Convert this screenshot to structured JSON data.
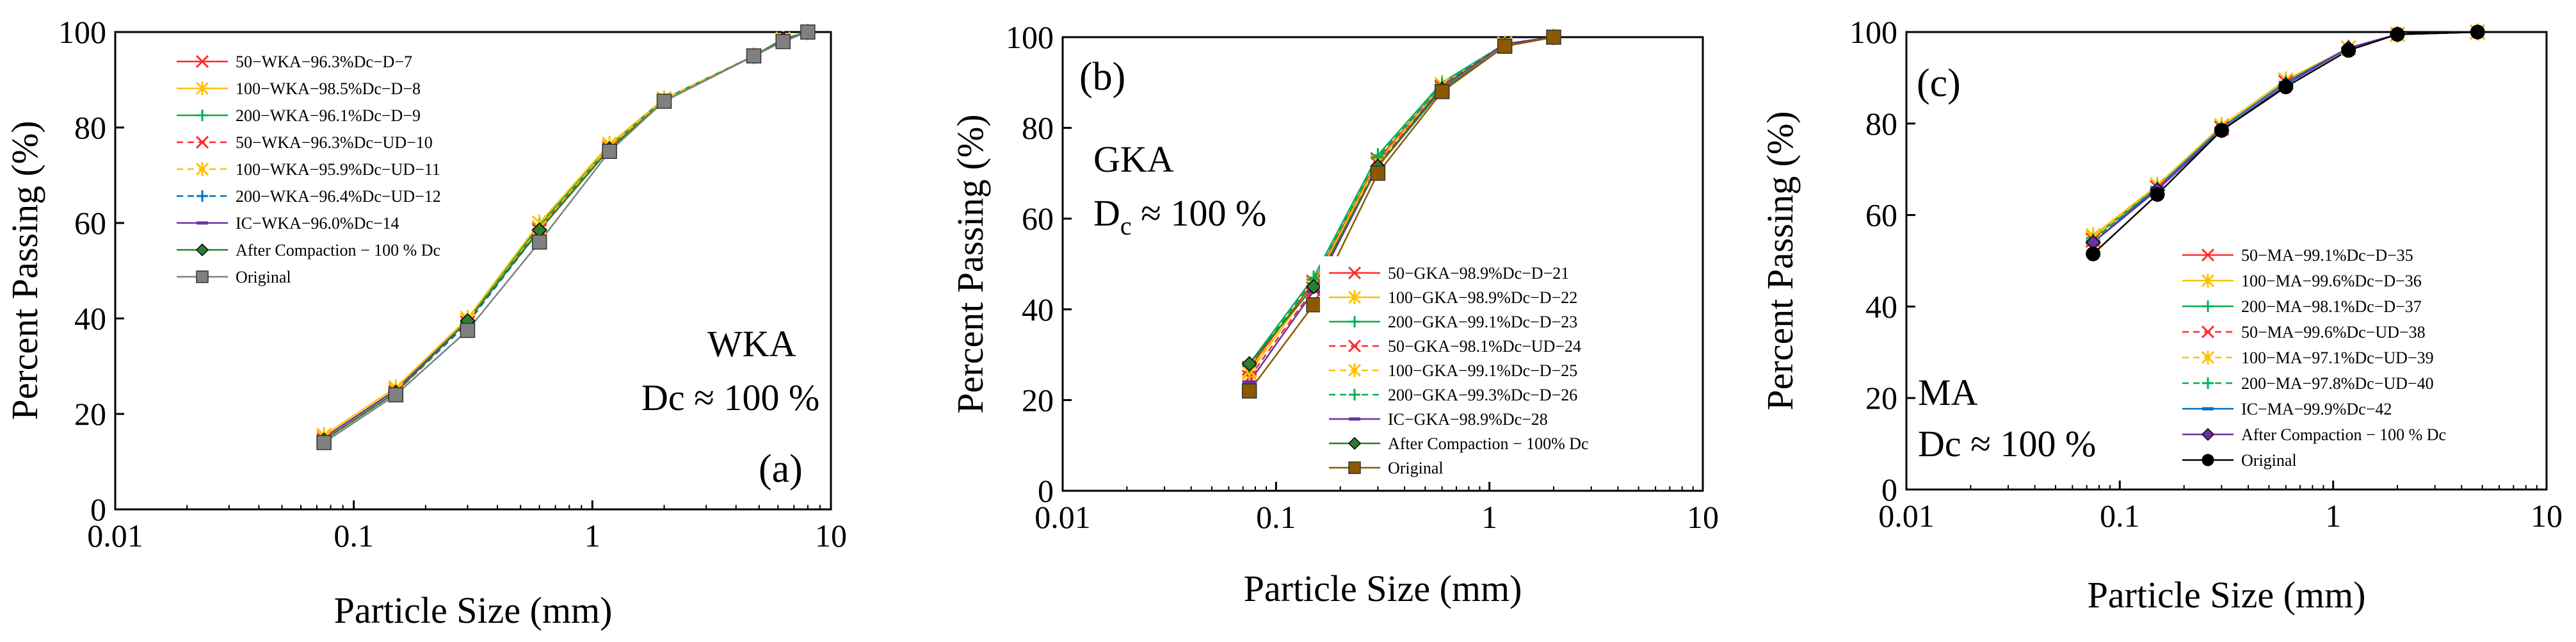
{
  "chart_data": [
    {
      "type": "line",
      "panel_label": "(a)",
      "material_label": "WKA",
      "dc_label": "Dc ≈ 100 %",
      "xlabel": "Particle Size (mm)",
      "ylabel": "Percent Passing (%)",
      "xscale": "log",
      "xlim": [
        0.01,
        10
      ],
      "ylim": [
        0,
        100
      ],
      "xticks": [
        0.01,
        0.1,
        1,
        10
      ],
      "xtick_labels": [
        "0.01",
        "0.1",
        "1",
        "10"
      ],
      "yticks": [
        0,
        20,
        40,
        60,
        80,
        100
      ],
      "ytick_labels": [
        "0",
        "20",
        "40",
        "60",
        "80",
        "100"
      ],
      "grid": false,
      "legend_position": "top-left",
      "series": [
        {
          "name": "50−WKA−96.3%Dc−D−7",
          "color": "#ff2a2a",
          "dash": "solid",
          "marker": "x",
          "x": [
            0.075,
            0.15,
            0.3,
            0.6,
            1.18,
            2.0,
            4.75,
            6.3,
            8.0
          ],
          "y": [
            15.0,
            25.0,
            39.5,
            59.0,
            76.0,
            86.0,
            95.0,
            98.5,
            100
          ]
        },
        {
          "name": "100−WKA−98.5%Dc−D−8",
          "color": "#ffc000",
          "dash": "solid",
          "marker": "asterisk",
          "x": [
            0.075,
            0.15,
            0.3,
            0.6,
            1.18,
            2.0,
            4.75,
            6.3,
            8.0
          ],
          "y": [
            15.5,
            25.5,
            40.0,
            60.0,
            76.5,
            86.0,
            95.0,
            98.5,
            100
          ]
        },
        {
          "name": "200−WKA−96.1%Dc−D−9",
          "color": "#00b050",
          "dash": "solid",
          "marker": "plus",
          "x": [
            0.075,
            0.15,
            0.3,
            0.6,
            1.18,
            2.0,
            4.75,
            6.3,
            8.0
          ],
          "y": [
            15.0,
            25.0,
            39.5,
            59.5,
            76.0,
            86.0,
            95.0,
            98.5,
            100
          ]
        },
        {
          "name": "50−WKA−96.3%Dc−UD−10",
          "color": "#ff2a2a",
          "dash": "dashed",
          "marker": "x",
          "x": [
            0.075,
            0.15,
            0.3,
            0.6,
            1.18,
            2.0,
            4.75,
            6.3,
            8.0
          ],
          "y": [
            14.5,
            24.5,
            39.0,
            58.5,
            75.5,
            85.5,
            95.0,
            98.5,
            100
          ]
        },
        {
          "name": "100−WKA−95.9%Dc−UD−11",
          "color": "#ffc000",
          "dash": "dashed",
          "marker": "asterisk",
          "x": [
            0.075,
            0.15,
            0.3,
            0.6,
            1.18,
            2.0,
            4.75,
            6.3,
            8.0
          ],
          "y": [
            15.0,
            25.0,
            39.5,
            59.0,
            76.0,
            86.0,
            95.0,
            98.5,
            100
          ]
        },
        {
          "name": "200−WKA−96.4%Dc−UD−12",
          "color": "#0070c0",
          "dash": "dashed",
          "marker": "plus",
          "x": [
            0.075,
            0.15,
            0.3,
            0.6,
            1.18,
            2.0,
            4.75,
            6.3,
            8.0
          ],
          "y": [
            14.5,
            24.5,
            39.0,
            58.5,
            75.5,
            85.5,
            95.0,
            98.5,
            100
          ]
        },
        {
          "name": "IC−WKA−96.0%Dc−14",
          "color": "#7030a0",
          "dash": "solid",
          "marker": "dash",
          "x": [
            0.075,
            0.15,
            0.3,
            0.6,
            1.18,
            2.0,
            4.75,
            6.3,
            8.0
          ],
          "y": [
            15.0,
            25.0,
            39.5,
            58.5,
            75.5,
            85.5,
            95.0,
            98.5,
            100
          ]
        },
        {
          "name": "After Compaction − 100 % Dc",
          "color": "#2e7d32",
          "dash": "solid",
          "marker": "diamond",
          "x": [
            0.075,
            0.15,
            0.3,
            0.6,
            1.18,
            2.0,
            4.75,
            6.3,
            8.0
          ],
          "y": [
            14.5,
            24.5,
            39.5,
            58.5,
            75.5,
            85.5,
            95.0,
            98.5,
            100
          ]
        },
        {
          "name": "Original",
          "color": "#808080",
          "dash": "solid",
          "marker": "square",
          "x": [
            0.075,
            0.15,
            0.3,
            0.6,
            1.18,
            2.0,
            4.75,
            6.3,
            8.0
          ],
          "y": [
            14.0,
            24.0,
            37.5,
            56.0,
            75.0,
            85.5,
            95.0,
            98.0,
            100
          ]
        }
      ]
    },
    {
      "type": "line",
      "panel_label": "(b)",
      "material_label": "GKA",
      "dc_label": "D",
      "dc_label_sub": "c",
      "dc_label_rest": " ≈ 100 %",
      "xlabel": "Particle Size (mm)",
      "ylabel": "Percent Passing (%)",
      "xscale": "log",
      "xlim": [
        0.01,
        10
      ],
      "ylim": [
        0,
        100
      ],
      "xticks": [
        0.01,
        0.1,
        1,
        10
      ],
      "xtick_labels": [
        "0.01",
        "0.1",
        "1",
        "10"
      ],
      "yticks": [
        0,
        20,
        40,
        60,
        80,
        100
      ],
      "ytick_labels": [
        "0",
        "20",
        "40",
        "60",
        "80",
        "100"
      ],
      "grid": false,
      "legend_position": "bottom-right",
      "series": [
        {
          "name": "50−GKA−98.9%Dc−D−21",
          "color": "#ff2a2a",
          "dash": "solid",
          "marker": "x",
          "x": [
            0.075,
            0.15,
            0.3,
            0.6,
            1.18,
            2.0
          ],
          "y": [
            27.0,
            46.0,
            73.0,
            89.5,
            98.5,
            100
          ]
        },
        {
          "name": "100−GKA−98.9%Dc−D−22",
          "color": "#ffc000",
          "dash": "solid",
          "marker": "asterisk",
          "x": [
            0.075,
            0.15,
            0.3,
            0.6,
            1.18,
            2.0
          ],
          "y": [
            26.0,
            45.5,
            72.5,
            89.0,
            98.5,
            100
          ]
        },
        {
          "name": "200−GKA−99.1%Dc−D−23",
          "color": "#00b050",
          "dash": "solid",
          "marker": "plus",
          "x": [
            0.075,
            0.15,
            0.3,
            0.6,
            1.18,
            2.0
          ],
          "y": [
            28.0,
            47.0,
            74.0,
            90.0,
            98.5,
            100
          ]
        },
        {
          "name": "50−GKA−98.1%Dc−UD−24",
          "color": "#ff2a2a",
          "dash": "dashed",
          "marker": "x",
          "x": [
            0.075,
            0.15,
            0.3,
            0.6,
            1.18,
            2.0
          ],
          "y": [
            25.0,
            44.5,
            72.0,
            89.0,
            98.5,
            100
          ]
        },
        {
          "name": "100−GKA−99.1%Dc−D−25",
          "color": "#ffc000",
          "dash": "dashed",
          "marker": "asterisk",
          "x": [
            0.075,
            0.15,
            0.3,
            0.6,
            1.18,
            2.0
          ],
          "y": [
            26.5,
            45.5,
            72.5,
            89.5,
            98.5,
            100
          ]
        },
        {
          "name": "200−GKA−99.3%Dc−D−26",
          "color": "#00b050",
          "dash": "dashed",
          "marker": "plus",
          "x": [
            0.075,
            0.15,
            0.3,
            0.6,
            1.18,
            2.0
          ],
          "y": [
            27.5,
            46.5,
            73.5,
            89.5,
            98.5,
            100
          ]
        },
        {
          "name": "IC−GKA−98.9%Dc−28",
          "color": "#7030a0",
          "dash": "solid",
          "marker": "dash",
          "x": [
            0.075,
            0.15,
            0.3,
            0.6,
            1.18,
            2.0
          ],
          "y": [
            24.0,
            44.0,
            71.5,
            89.0,
            98.5,
            100
          ]
        },
        {
          "name": "After Compaction − 100% Dc",
          "color": "#2e7d32",
          "dash": "solid",
          "marker": "diamond",
          "x": [
            0.075,
            0.15,
            0.3,
            0.6,
            1.18,
            2.0
          ],
          "y": [
            28.0,
            45.0,
            71.5,
            88.5,
            98.0,
            100
          ]
        },
        {
          "name": "Original",
          "color": "#8b5a00",
          "dash": "solid",
          "marker": "square",
          "x": [
            0.075,
            0.15,
            0.3,
            0.6,
            1.18,
            2.0
          ],
          "y": [
            22.0,
            41.0,
            70.0,
            88.0,
            98.0,
            100
          ]
        }
      ]
    },
    {
      "type": "line",
      "panel_label": "(c)",
      "material_label": "MA",
      "dc_label": "Dc ≈ 100 %",
      "xlabel": "Particle Size (mm)",
      "ylabel": "Percent Passing (%)",
      "xscale": "log",
      "xlim": [
        0.01,
        10
      ],
      "ylim": [
        0,
        100
      ],
      "xticks": [
        0.01,
        0.1,
        1,
        10
      ],
      "xtick_labels": [
        "0.01",
        "0.1",
        "1",
        "10"
      ],
      "yticks": [
        0,
        20,
        40,
        60,
        80,
        100
      ],
      "ytick_labels": [
        "0",
        "20",
        "40",
        "60",
        "80",
        "100"
      ],
      "grid": false,
      "legend_position": "bottom-right",
      "series": [
        {
          "name": "50−MA−99.1%Dc−D−35",
          "color": "#ff2a2a",
          "dash": "solid",
          "marker": "x",
          "x": [
            0.075,
            0.15,
            0.3,
            0.6,
            1.18,
            2.0,
            4.75
          ],
          "y": [
            55.0,
            66.5,
            79.5,
            89.5,
            96.5,
            99.5,
            100
          ]
        },
        {
          "name": "100−MA−99.6%Dc−D−36",
          "color": "#ffc000",
          "dash": "solid",
          "marker": "asterisk",
          "x": [
            0.075,
            0.15,
            0.3,
            0.6,
            1.18,
            2.0,
            4.75
          ],
          "y": [
            55.5,
            66.5,
            79.5,
            89.5,
            96.5,
            99.5,
            100
          ]
        },
        {
          "name": "200−MA−98.1%Dc−D−37",
          "color": "#00b050",
          "dash": "solid",
          "marker": "plus",
          "x": [
            0.075,
            0.15,
            0.3,
            0.6,
            1.18,
            2.0,
            4.75
          ],
          "y": [
            55.0,
            66.0,
            79.0,
            89.0,
            96.5,
            99.5,
            100
          ]
        },
        {
          "name": "50−MA−99.6%Dc−UD−38",
          "color": "#ff2a2a",
          "dash": "dashed",
          "marker": "x",
          "x": [
            0.075,
            0.15,
            0.3,
            0.6,
            1.18,
            2.0,
            4.75
          ],
          "y": [
            54.5,
            66.0,
            79.0,
            89.0,
            96.5,
            99.5,
            100
          ]
        },
        {
          "name": "100−MA−97.1%Dc−UD−39",
          "color": "#ffc000",
          "dash": "dashed",
          "marker": "asterisk",
          "x": [
            0.075,
            0.15,
            0.3,
            0.6,
            1.18,
            2.0,
            4.75
          ],
          "y": [
            55.0,
            66.5,
            79.5,
            89.5,
            96.5,
            99.5,
            100
          ]
        },
        {
          "name": "200−MA−97.8%Dc−UD−40",
          "color": "#00b050",
          "dash": "dashed",
          "marker": "plus",
          "x": [
            0.075,
            0.15,
            0.3,
            0.6,
            1.18,
            2.0,
            4.75
          ],
          "y": [
            54.5,
            66.0,
            79.0,
            89.0,
            96.5,
            99.5,
            100
          ]
        },
        {
          "name": "IC−MA−99.9%Dc−42",
          "color": "#0070c0",
          "dash": "solid",
          "marker": "dash",
          "x": [
            0.075,
            0.15,
            0.3,
            0.6,
            1.18,
            2.0,
            4.75
          ],
          "y": [
            54.0,
            66.0,
            79.0,
            89.0,
            96.5,
            99.5,
            100
          ]
        },
        {
          "name": "After Compaction − 100 % Dc",
          "color": "#7030a0",
          "dash": "solid",
          "marker": "diamond",
          "x": [
            0.075,
            0.15,
            0.3,
            0.6,
            1.18,
            2.0,
            4.75
          ],
          "y": [
            54.0,
            65.5,
            78.5,
            88.5,
            96.5,
            99.5,
            100
          ]
        },
        {
          "name": "Original",
          "color": "#000000",
          "dash": "solid",
          "marker": "circle",
          "x": [
            0.075,
            0.15,
            0.3,
            0.6,
            1.18,
            2.0,
            4.75
          ],
          "y": [
            51.5,
            64.5,
            78.5,
            88.0,
            96.0,
            99.5,
            100
          ]
        }
      ]
    }
  ]
}
